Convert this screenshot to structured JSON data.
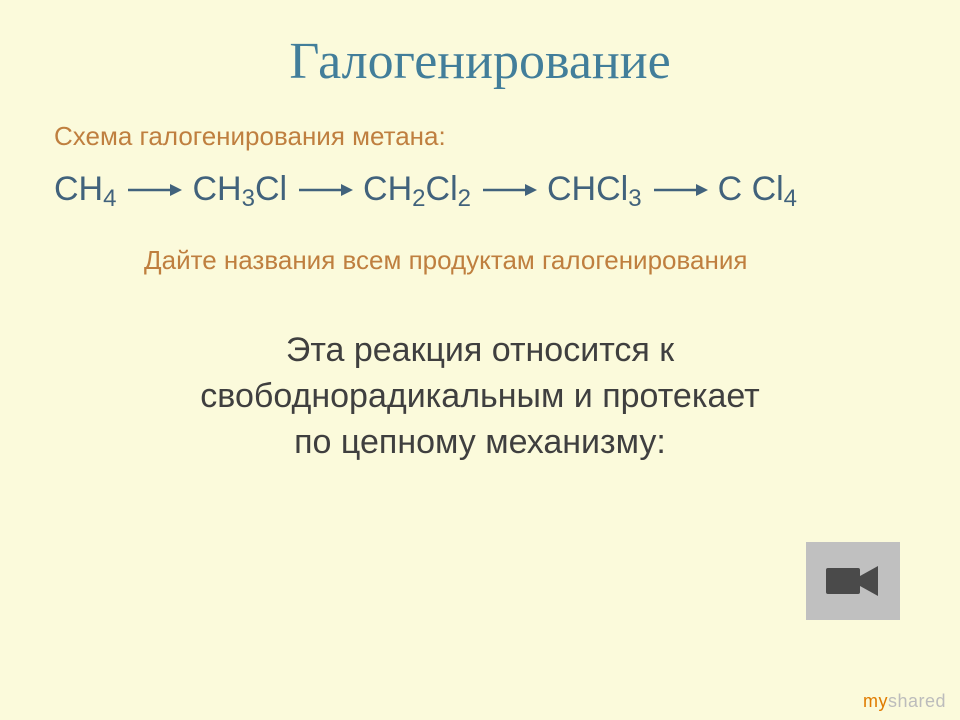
{
  "colors": {
    "background": "#fbfadb",
    "title": "#427e9a",
    "subtitle": "#bf7f3f",
    "formula": "#41627c",
    "arrow": "#41627c",
    "task": "#bf7f3f",
    "mainText": "#3f3f3f",
    "cameraBoxBg": "#c0c0c0",
    "cameraIcon": "#4a4a4a",
    "watermarkMy": "#e07b00",
    "watermarkShared": "#bcbcbc"
  },
  "title": "Галогенирование",
  "subtitle": "Схема галогенирования метана:",
  "scheme": {
    "items": [
      {
        "base": "CH",
        "sub1": "4",
        "tail": "",
        "subTail": ""
      },
      {
        "base": "CH",
        "sub1": "3",
        "tail": "Cl",
        "subTail": ""
      },
      {
        "base": "CH",
        "sub1": "2",
        "tail": "Cl",
        "subTail": "2"
      },
      {
        "base": "CHCl",
        "sub1": "3",
        "tail": "",
        "subTail": ""
      },
      {
        "base": "C Cl",
        "sub1": "",
        "tail": "",
        "subTail": "4",
        "preSubOnTail": true
      }
    ]
  },
  "taskLine": "Дайте названия всем продуктам галогенирования",
  "mainText": {
    "l1": "Эта реакция относится к",
    "l2": "свободнорадикальным и протекает",
    "l3": "по цепному механизму:"
  },
  "watermark": {
    "my": "my",
    "shared": "shared"
  }
}
